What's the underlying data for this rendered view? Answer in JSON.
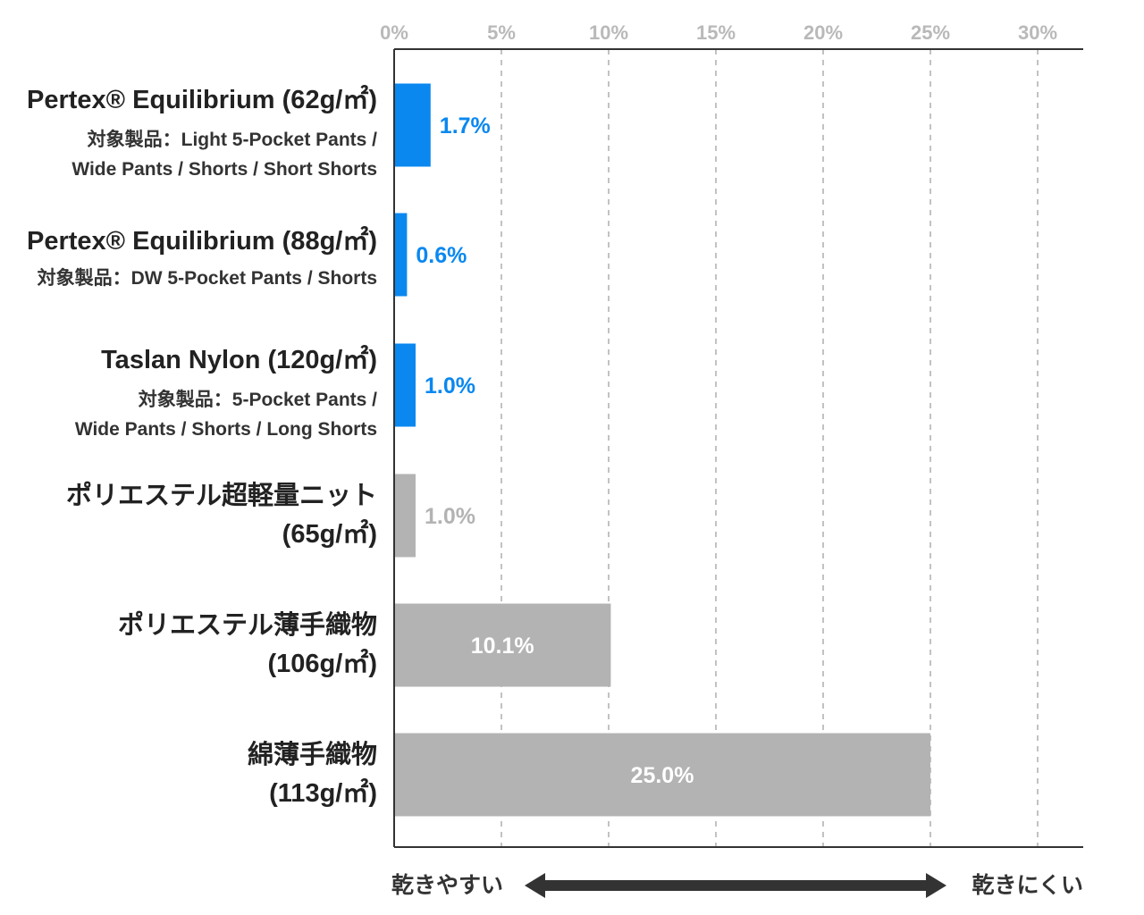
{
  "chart_data": {
    "type": "bar",
    "orientation": "horizontal",
    "xlim": [
      0,
      30
    ],
    "xticks": [
      "0%",
      "5%",
      "10%",
      "15%",
      "20%",
      "25%",
      "30%"
    ],
    "grid": true,
    "categories": [
      {
        "lines": [
          "Pertex® Equilibrium (62g/㎡)",
          "対象製品：Light 5-Pocket Pants /",
          "Wide Pants / Shorts / Short Shorts"
        ],
        "value": 1.7,
        "label": "1.7%",
        "highlight": true
      },
      {
        "lines": [
          "Pertex® Equilibrium (88g/㎡)",
          "対象製品：DW 5-Pocket Pants / Shorts"
        ],
        "value": 0.6,
        "label": "0.6%",
        "highlight": true
      },
      {
        "lines": [
          "Taslan Nylon (120g/㎡)",
          "対象製品：5-Pocket Pants /",
          "Wide Pants / Shorts / Long Shorts"
        ],
        "value": 1.0,
        "label": "1.0%",
        "highlight": true
      },
      {
        "lines": [
          "ポリエステル超軽量ニット",
          "(65g/㎡)"
        ],
        "value": 1.0,
        "label": "1.0%",
        "highlight": false
      },
      {
        "lines": [
          "ポリエステル薄手織物",
          "(106g/㎡)"
        ],
        "value": 10.1,
        "label": "10.1%",
        "highlight": false
      },
      {
        "lines": [
          "綿薄手織物",
          "(113g/㎡)"
        ],
        "value": 25.0,
        "label": "25.0%",
        "highlight": false
      }
    ],
    "colors": {
      "highlight": "#0a88f0",
      "other": "#b3b3b3",
      "axis": "#333333",
      "grid": "#c2c2c2"
    },
    "caption": {
      "left": "乾きやすい",
      "right": "乾きにくい"
    }
  }
}
